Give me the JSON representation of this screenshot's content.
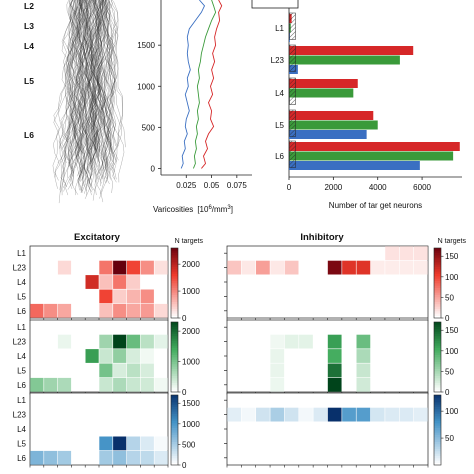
{
  "colors": {
    "red": "#d62728",
    "green": "#3a9a3a",
    "blue": "#3a6fc2",
    "morph": "#2b2b2b"
  },
  "layers": [
    "L1",
    "L23",
    "L4",
    "L5",
    "L6"
  ],
  "morphology": {
    "layer_labels": [
      "L2",
      "L3",
      "L4",
      "L5",
      "L6"
    ]
  },
  "chart_data": [
    {
      "type": "line",
      "xlabel": "Varicosities",
      "xlabel_unit": "[10",
      "xlabel_exp": "6",
      "xlabel_unit_tail": "/mm",
      "xlabel_unit_exp": "3",
      "xlabel_close": "]",
      "xticks": [
        "0.025",
        "0.05",
        "0.075"
      ],
      "xlim": [
        0.0,
        0.09
      ],
      "yticks": [
        "0",
        "500",
        "1000",
        "1500"
      ],
      "ylim": [
        -80,
        2050
      ],
      "series": [
        {
          "color": "blue",
          "x": [
            0.02,
            0.022,
            0.021,
            0.024,
            0.023,
            0.026,
            0.024,
            0.025,
            0.028,
            0.026,
            0.024,
            0.027,
            0.026,
            0.029,
            0.027,
            0.026,
            0.027,
            0.026,
            0.028,
            0.034,
            0.04,
            0.043,
            0.038
          ],
          "y": [
            0,
            60,
            150,
            240,
            330,
            420,
            510,
            600,
            700,
            800,
            900,
            1000,
            1100,
            1200,
            1300,
            1400,
            1500,
            1600,
            1700,
            1800,
            1900,
            1980,
            2050
          ]
        },
        {
          "color": "green",
          "x": [
            0.032,
            0.034,
            0.033,
            0.035,
            0.034,
            0.036,
            0.035,
            0.037,
            0.036,
            0.038,
            0.037,
            0.036,
            0.038,
            0.037,
            0.039,
            0.04,
            0.042,
            0.044,
            0.047,
            0.05,
            0.054,
            0.052,
            0.05
          ],
          "y": [
            0,
            60,
            150,
            240,
            330,
            420,
            510,
            600,
            700,
            800,
            900,
            1000,
            1100,
            1200,
            1300,
            1400,
            1500,
            1600,
            1700,
            1800,
            1900,
            1980,
            2050
          ]
        },
        {
          "color": "red",
          "x": [
            0.04,
            0.044,
            0.042,
            0.046,
            0.044,
            0.047,
            0.052,
            0.049,
            0.05,
            0.047,
            0.051,
            0.049,
            0.052,
            0.05,
            0.053,
            0.051,
            0.054,
            0.053,
            0.055,
            0.058,
            0.057,
            0.06,
            0.057
          ],
          "y": [
            0,
            60,
            150,
            240,
            330,
            420,
            510,
            600,
            700,
            800,
            900,
            1000,
            1100,
            1200,
            1300,
            1400,
            1500,
            1600,
            1700,
            1800,
            1900,
            1980,
            2050
          ]
        }
      ]
    },
    {
      "type": "bar",
      "orientation": "horizontal",
      "xlabel": "Number of tar get neurons",
      "xticks": [
        "0",
        "2000",
        "4000",
        "6000"
      ],
      "xlim": [
        0,
        7800
      ],
      "categories": [
        "L1",
        "L23",
        "L4",
        "L5",
        "L6"
      ],
      "series": [
        {
          "color": "red",
          "values": [
            120,
            5600,
            3100,
            3800,
            7700
          ]
        },
        {
          "color": "green",
          "values": [
            80,
            5000,
            2900,
            4000,
            7400
          ]
        },
        {
          "color": "blue",
          "values": [
            40,
            400,
            0,
            3500,
            5900
          ]
        }
      ]
    },
    {
      "type": "heatmap",
      "panels": [
        {
          "title": "Excitatory",
          "colorbar_title": "N targets",
          "grid": {
            "rows": 5,
            "cols": 10
          },
          "maps": [
            {
              "color": "red",
              "max": 2600,
              "cbar_ticks": [
                "0",
                "1000",
                "2000"
              ],
              "cbar_values": [
                0,
                1000,
                2000
              ],
              "values": [
                [
                  0,
                  0,
                  0,
                  0,
                  0,
                  0,
                  0,
                  0,
                  0,
                  0
                ],
                [
                  0,
                  0,
                  300,
                  0,
                  0,
                  1100,
                  2600,
                  1500,
                  900,
                  250
                ],
                [
                  0,
                  0,
                  0,
                  0,
                  1800,
                  500,
                  1100,
                  400,
                  0,
                  0
                ],
                [
                  0,
                  0,
                  0,
                  0,
                  0,
                  1500,
                  400,
                  600,
                  900,
                  0
                ],
                [
                  1200,
                  900,
                  700,
                  0,
                  0,
                  500,
                  900,
                  700,
                  800,
                  300
                ]
              ]
            },
            {
              "color": "green",
              "max": 2300,
              "cbar_ticks": [
                "0",
                "1000",
                "2000"
              ],
              "cbar_values": [
                0,
                1000,
                2000
              ],
              "values": [
                [
                  0,
                  0,
                  0,
                  0,
                  0,
                  0,
                  0,
                  0,
                  0,
                  0
                ],
                [
                  0,
                  0,
                  150,
                  0,
                  0,
                  700,
                  2300,
                  1100,
                  500,
                  200
                ],
                [
                  0,
                  0,
                  0,
                  0,
                  1500,
                  400,
                  800,
                  300,
                  100,
                  0
                ],
                [
                  0,
                  0,
                  0,
                  0,
                  0,
                  1000,
                  300,
                  500,
                  300,
                  0
                ],
                [
                  900,
                  700,
                  600,
                  0,
                  0,
                  400,
                  600,
                  400,
                  350,
                  100
                ]
              ]
            },
            {
              "color": "blue",
              "max": 1700,
              "cbar_ticks": [
                "0",
                "500",
                "1000",
                "1500"
              ],
              "cbar_values": [
                0,
                500,
                1000,
                1500
              ],
              "values": [
                [
                  0,
                  0,
                  0,
                  0,
                  0,
                  0,
                  0,
                  0,
                  0,
                  0
                ],
                [
                  0,
                  0,
                  0,
                  0,
                  0,
                  0,
                  0,
                  0,
                  0,
                  0
                ],
                [
                  0,
                  0,
                  0,
                  0,
                  0,
                  0,
                  0,
                  0,
                  0,
                  0
                ],
                [
                  0,
                  0,
                  0,
                  0,
                  0,
                  1000,
                  1700,
                  400,
                  200,
                  50
                ],
                [
                  700,
                  600,
                  500,
                  0,
                  0,
                  500,
                  600,
                  400,
                  350,
                  200
                ]
              ]
            }
          ]
        },
        {
          "title": "Inhibitory",
          "colorbar_title": "N targets",
          "grid": {
            "rows": 5,
            "cols": 14
          },
          "maps": [
            {
              "color": "red",
              "max": 170,
              "cbar_ticks": [
                "0",
                "50",
                "100",
                "150"
              ],
              "cbar_values": [
                0,
                50,
                100,
                150
              ],
              "values": [
                [
                  0,
                  0,
                  0,
                  0,
                  0,
                  0,
                  0,
                  0,
                  0,
                  0,
                  0,
                  15,
                  15,
                  15
                ],
                [
                  30,
                  12,
                  50,
                  12,
                  30,
                  0,
                  0,
                  160,
                  110,
                  110,
                  10,
                  10,
                  10,
                  10
                ],
                [
                  0,
                  0,
                  0,
                  0,
                  0,
                  0,
                  0,
                  0,
                  0,
                  0,
                  0,
                  0,
                  0,
                  0
                ],
                [
                  0,
                  0,
                  0,
                  0,
                  0,
                  0,
                  0,
                  0,
                  0,
                  0,
                  0,
                  0,
                  0,
                  0
                ],
                [
                  0,
                  0,
                  0,
                  0,
                  0,
                  0,
                  0,
                  0,
                  0,
                  0,
                  0,
                  0,
                  0,
                  0
                ]
              ]
            },
            {
              "color": "green",
              "max": 170,
              "cbar_ticks": [
                "0",
                "50",
                "100",
                "150"
              ],
              "cbar_values": [
                0,
                50,
                100,
                150
              ],
              "values": [
                [
                  0,
                  0,
                  0,
                  0,
                  0,
                  0,
                  0,
                  0,
                  0,
                  0,
                  0,
                  0,
                  0,
                  0
                ],
                [
                  0,
                  0,
                  0,
                  8,
                  15,
                  15,
                  0,
                  110,
                  0,
                  80,
                  0,
                  0,
                  0,
                  0
                ],
                [
                  0,
                  0,
                  0,
                  12,
                  0,
                  0,
                  0,
                  100,
                  0,
                  45,
                  0,
                  0,
                  0,
                  0
                ],
                [
                  0,
                  0,
                  0,
                  12,
                  0,
                  0,
                  0,
                  140,
                  0,
                  30,
                  0,
                  0,
                  0,
                  0
                ],
                [
                  0,
                  0,
                  0,
                  10,
                  0,
                  0,
                  0,
                  170,
                  0,
                  25,
                  0,
                  0,
                  0,
                  0
                ]
              ]
            },
            {
              "color": "blue",
              "max": 130,
              "cbar_ticks": [
                "50",
                "100"
              ],
              "cbar_values": [
                50,
                100
              ],
              "values": [
                [
                  0,
                  0,
                  0,
                  0,
                  0,
                  0,
                  0,
                  0,
                  0,
                  0,
                  0,
                  0,
                  0,
                  0
                ],
                [
                  12,
                  5,
                  20,
                  35,
                  20,
                  5,
                  15,
                  130,
                  70,
                  70,
                  18,
                  15,
                  15,
                  12
                ],
                [
                  0,
                  0,
                  0,
                  0,
                  0,
                  0,
                  0,
                  0,
                  0,
                  0,
                  0,
                  0,
                  0,
                  0
                ],
                [
                  0,
                  0,
                  0,
                  0,
                  0,
                  0,
                  0,
                  0,
                  0,
                  0,
                  0,
                  0,
                  0,
                  0
                ],
                [
                  0,
                  0,
                  0,
                  0,
                  0,
                  0,
                  0,
                  0,
                  0,
                  0,
                  0,
                  0,
                  0,
                  0
                ]
              ]
            }
          ]
        }
      ]
    }
  ]
}
